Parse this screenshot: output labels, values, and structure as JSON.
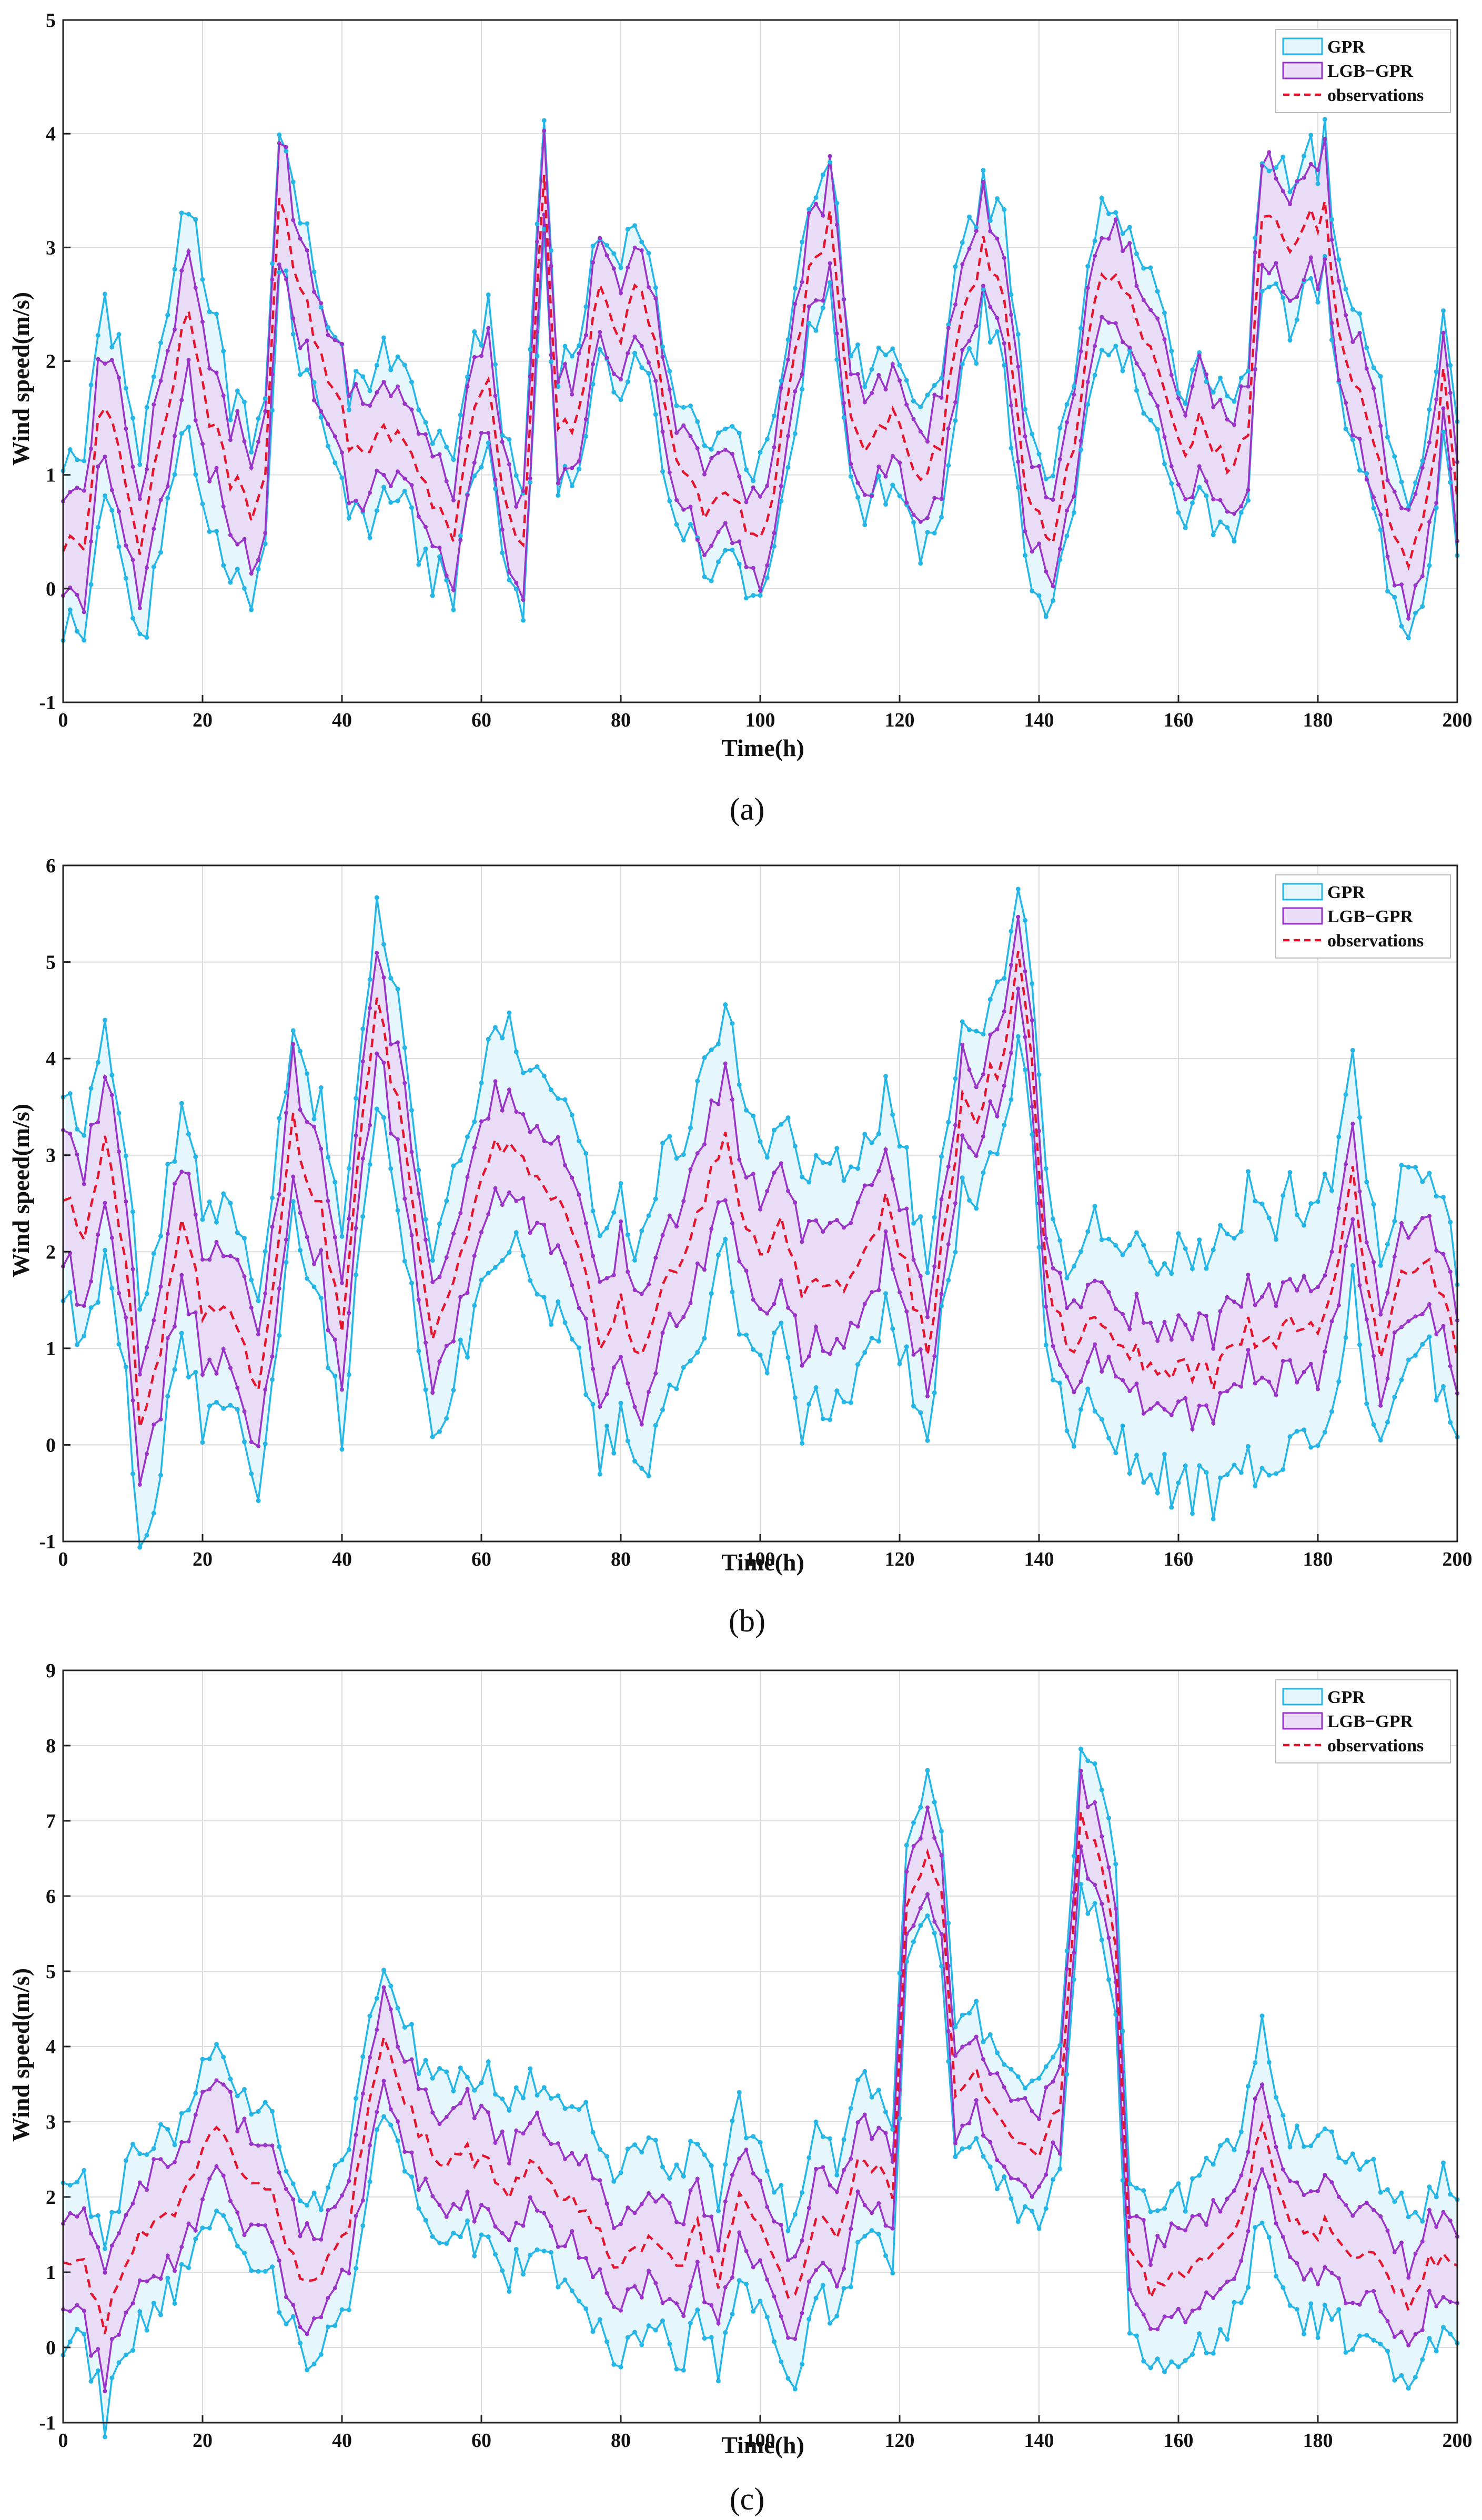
{
  "colors": {
    "gpr_line": "#25b6e6",
    "gpr_fill": "#e5f7fc",
    "lgb_line": "#9a34c9",
    "lgb_fill": "#e9dcf7",
    "obs": "#e5142d",
    "grid": "#dcdcdc",
    "axis": "#222222"
  },
  "chart_data": [
    {
      "type": "line",
      "caption": "(a)",
      "xlabel": "Time(h)",
      "ylabel": "Wind speed(m/s)",
      "xlim": [
        0,
        200
      ],
      "ylim": [
        -1,
        5
      ],
      "xticks": [
        0,
        20,
        40,
        60,
        80,
        100,
        120,
        140,
        160,
        180,
        200
      ],
      "yticks": [
        -1,
        0,
        1,
        2,
        3,
        4,
        5
      ],
      "legend": [
        "GPR",
        "LGB−GPR",
        "observations"
      ],
      "legend_position": "top-right",
      "grid": true,
      "anchors": [
        [
          0,
          0.4
        ],
        [
          3,
          0.3
        ],
        [
          5,
          1.6
        ],
        [
          8,
          1.3
        ],
        [
          11,
          0.4
        ],
        [
          14,
          1.4
        ],
        [
          18,
          2.4
        ],
        [
          21,
          1.5
        ],
        [
          24,
          1.0
        ],
        [
          27,
          0.6
        ],
        [
          29,
          1.0
        ],
        [
          31,
          3.4
        ],
        [
          34,
          2.7
        ],
        [
          37,
          2.1
        ],
        [
          41,
          1.3
        ],
        [
          44,
          1.2
        ],
        [
          48,
          1.4
        ],
        [
          52,
          0.8
        ],
        [
          56,
          0.4
        ],
        [
          59,
          1.6
        ],
        [
          61,
          1.8
        ],
        [
          64,
          0.6
        ],
        [
          66,
          0.4
        ],
        [
          69,
          3.7
        ],
        [
          71,
          1.3
        ],
        [
          74,
          1.5
        ],
        [
          77,
          2.7
        ],
        [
          80,
          2.2
        ],
        [
          83,
          2.7
        ],
        [
          86,
          1.7
        ],
        [
          89,
          1.0
        ],
        [
          92,
          0.7
        ],
        [
          95,
          0.9
        ],
        [
          98,
          0.5
        ],
        [
          101,
          0.6
        ],
        [
          104,
          1.6
        ],
        [
          107,
          2.7
        ],
        [
          110,
          3.2
        ],
        [
          113,
          1.4
        ],
        [
          116,
          1.2
        ],
        [
          119,
          1.6
        ],
        [
          122,
          0.9
        ],
        [
          126,
          1.3
        ],
        [
          129,
          2.4
        ],
        [
          132,
          3.0
        ],
        [
          135,
          2.5
        ],
        [
          138,
          1.0
        ],
        [
          140,
          0.6
        ],
        [
          142,
          0.3
        ],
        [
          145,
          1.3
        ],
        [
          148,
          2.6
        ],
        [
          151,
          2.8
        ],
        [
          154,
          2.3
        ],
        [
          157,
          2.0
        ],
        [
          160,
          1.2
        ],
        [
          163,
          1.5
        ],
        [
          167,
          1.0
        ],
        [
          170,
          1.4
        ],
        [
          172,
          3.4
        ],
        [
          174,
          3.3
        ],
        [
          176,
          3.0
        ],
        [
          178,
          3.2
        ],
        [
          181,
          3.3
        ],
        [
          184,
          1.9
        ],
        [
          187,
          1.5
        ],
        [
          190,
          0.7
        ],
        [
          193,
          0.3
        ],
        [
          196,
          0.8
        ],
        [
          198,
          1.8
        ],
        [
          200,
          0.9
        ]
      ],
      "gpr_anchors": [
        [
          0,
          0.8
        ],
        [
          10,
          0.85
        ],
        [
          20,
          1.0
        ],
        [
          30,
          0.6
        ],
        [
          40,
          0.55
        ],
        [
          50,
          0.6
        ],
        [
          60,
          0.6
        ],
        [
          70,
          0.5
        ],
        [
          80,
          0.6
        ],
        [
          90,
          0.55
        ],
        [
          100,
          0.55
        ],
        [
          110,
          0.6
        ],
        [
          120,
          0.6
        ],
        [
          130,
          0.6
        ],
        [
          140,
          0.6
        ],
        [
          150,
          0.6
        ],
        [
          160,
          0.6
        ],
        [
          170,
          0.55
        ],
        [
          180,
          0.6
        ],
        [
          190,
          0.6
        ],
        [
          200,
          0.6
        ]
      ],
      "lgb_anchors": [
        [
          0,
          0.5
        ],
        [
          10,
          0.5
        ],
        [
          20,
          0.5
        ],
        [
          30,
          0.5
        ],
        [
          40,
          0.45
        ],
        [
          50,
          0.4
        ],
        [
          60,
          0.4
        ],
        [
          70,
          0.4
        ],
        [
          80,
          0.4
        ],
        [
          90,
          0.35
        ],
        [
          100,
          0.35
        ],
        [
          110,
          0.4
        ],
        [
          120,
          0.4
        ],
        [
          130,
          0.4
        ],
        [
          140,
          0.4
        ],
        [
          150,
          0.4
        ],
        [
          160,
          0.4
        ],
        [
          170,
          0.45
        ],
        [
          180,
          0.45
        ],
        [
          190,
          0.4
        ],
        [
          200,
          0.4
        ]
      ],
      "seed": 11
    },
    {
      "type": "line",
      "caption": "(b)",
      "xlabel": "Time(h)",
      "ylabel": "Wind speed(m/s)",
      "xlim": [
        0,
        200
      ],
      "ylim": [
        -1,
        6
      ],
      "xticks": [
        0,
        20,
        40,
        60,
        80,
        100,
        120,
        140,
        160,
        180,
        200
      ],
      "yticks": [
        -1,
        0,
        1,
        2,
        3,
        4,
        5,
        6
      ],
      "legend": [
        "GPR",
        "LGB−GPR",
        "observations"
      ],
      "legend_position": "top-right",
      "grid": true,
      "anchors": [
        [
          0,
          2.6
        ],
        [
          3,
          2.2
        ],
        [
          6,
          3.1
        ],
        [
          9,
          2.0
        ],
        [
          11,
          0.3
        ],
        [
          14,
          1.0
        ],
        [
          17,
          2.4
        ],
        [
          20,
          1.4
        ],
        [
          24,
          1.4
        ],
        [
          28,
          0.5
        ],
        [
          30,
          1.7
        ],
        [
          33,
          3.3
        ],
        [
          37,
          2.4
        ],
        [
          40,
          1.2
        ],
        [
          42,
          2.8
        ],
        [
          45,
          4.6
        ],
        [
          48,
          3.5
        ],
        [
          53,
          1.0
        ],
        [
          57,
          1.9
        ],
        [
          61,
          3.0
        ],
        [
          64,
          3.2
        ],
        [
          68,
          2.8
        ],
        [
          71,
          2.6
        ],
        [
          74,
          2.0
        ],
        [
          77,
          1.1
        ],
        [
          80,
          1.5
        ],
        [
          83,
          0.9
        ],
        [
          86,
          1.6
        ],
        [
          89,
          2.0
        ],
        [
          92,
          2.6
        ],
        [
          95,
          3.2
        ],
        [
          98,
          2.2
        ],
        [
          100,
          2.0
        ],
        [
          103,
          2.3
        ],
        [
          106,
          1.6
        ],
        [
          110,
          1.6
        ],
        [
          114,
          1.8
        ],
        [
          118,
          2.5
        ],
        [
          121,
          1.8
        ],
        [
          124,
          1.0
        ],
        [
          127,
          2.5
        ],
        [
          129,
          3.6
        ],
        [
          131,
          3.2
        ],
        [
          133,
          3.8
        ],
        [
          135,
          4.0
        ],
        [
          137,
          5.1
        ],
        [
          139,
          4.0
        ],
        [
          141,
          1.8
        ],
        [
          144,
          1.0
        ],
        [
          148,
          1.4
        ],
        [
          151,
          1.1
        ],
        [
          155,
          0.9
        ],
        [
          159,
          0.8
        ],
        [
          162,
          0.8
        ],
        [
          165,
          0.7
        ],
        [
          167,
          0.9
        ],
        [
          170,
          1.2
        ],
        [
          173,
          1.0
        ],
        [
          176,
          1.3
        ],
        [
          180,
          1.1
        ],
        [
          183,
          1.8
        ],
        [
          185,
          2.9
        ],
        [
          187,
          1.6
        ],
        [
          189,
          1.0
        ],
        [
          192,
          1.8
        ],
        [
          195,
          2.0
        ],
        [
          198,
          1.5
        ],
        [
          200,
          1.0
        ]
      ],
      "gpr_anchors": [
        [
          0,
          1.1
        ],
        [
          10,
          1.2
        ],
        [
          20,
          1.1
        ],
        [
          30,
          1.0
        ],
        [
          40,
          1.0
        ],
        [
          50,
          1.0
        ],
        [
          60,
          1.1
        ],
        [
          70,
          1.1
        ],
        [
          80,
          1.2
        ],
        [
          90,
          1.3
        ],
        [
          100,
          1.2
        ],
        [
          110,
          1.2
        ],
        [
          120,
          1.0
        ],
        [
          130,
          0.8
        ],
        [
          140,
          0.8
        ],
        [
          150,
          1.0
        ],
        [
          160,
          1.2
        ],
        [
          170,
          1.3
        ],
        [
          180,
          1.2
        ],
        [
          190,
          1.0
        ],
        [
          200,
          0.9
        ]
      ],
      "lgb_anchors": [
        [
          0,
          0.7
        ],
        [
          10,
          0.7
        ],
        [
          20,
          0.6
        ],
        [
          30,
          0.6
        ],
        [
          40,
          0.6
        ],
        [
          50,
          0.5
        ],
        [
          60,
          0.5
        ],
        [
          70,
          0.5
        ],
        [
          80,
          0.6
        ],
        [
          90,
          0.6
        ],
        [
          100,
          0.6
        ],
        [
          110,
          0.6
        ],
        [
          120,
          0.5
        ],
        [
          130,
          0.4
        ],
        [
          140,
          0.4
        ],
        [
          150,
          0.4
        ],
        [
          160,
          0.4
        ],
        [
          170,
          0.45
        ],
        [
          180,
          0.45
        ],
        [
          190,
          0.45
        ],
        [
          200,
          0.45
        ]
      ],
      "seed": 23
    },
    {
      "type": "line",
      "caption": "(c)",
      "xlabel": "Time(h)",
      "ylabel": "Wind speed(m/s)",
      "xlim": [
        0,
        200
      ],
      "ylim": [
        -1,
        9
      ],
      "xticks": [
        0,
        20,
        40,
        60,
        80,
        100,
        120,
        140,
        160,
        180,
        200
      ],
      "yticks": [
        -1,
        0,
        1,
        2,
        3,
        4,
        5,
        6,
        7,
        8,
        9
      ],
      "legend": [
        "GPR",
        "LGB−GPR",
        "observations"
      ],
      "legend_position": "top-right",
      "grid": true,
      "anchors": [
        [
          0,
          1.2
        ],
        [
          3,
          1.1
        ],
        [
          6,
          0.3
        ],
        [
          9,
          1.2
        ],
        [
          12,
          1.6
        ],
        [
          15,
          1.7
        ],
        [
          18,
          2.2
        ],
        [
          21,
          2.9
        ],
        [
          24,
          2.6
        ],
        [
          27,
          2.2
        ],
        [
          30,
          2.0
        ],
        [
          33,
          1.2
        ],
        [
          35,
          0.9
        ],
        [
          38,
          1.1
        ],
        [
          41,
          1.6
        ],
        [
          44,
          3.3
        ],
        [
          46,
          4.1
        ],
        [
          49,
          3.2
        ],
        [
          52,
          2.8
        ],
        [
          55,
          2.4
        ],
        [
          58,
          2.6
        ],
        [
          61,
          2.4
        ],
        [
          64,
          2.1
        ],
        [
          67,
          2.4
        ],
        [
          70,
          2.1
        ],
        [
          73,
          1.9
        ],
        [
          76,
          1.7
        ],
        [
          79,
          1.1
        ],
        [
          82,
          1.3
        ],
        [
          85,
          1.4
        ],
        [
          88,
          1.0
        ],
        [
          91,
          1.6
        ],
        [
          94,
          0.9
        ],
        [
          97,
          2.0
        ],
        [
          100,
          1.6
        ],
        [
          103,
          1.0
        ],
        [
          105,
          0.6
        ],
        [
          108,
          1.7
        ],
        [
          111,
          1.4
        ],
        [
          114,
          2.6
        ],
        [
          117,
          2.4
        ],
        [
          119,
          2.1
        ],
        [
          121,
          5.8
        ],
        [
          124,
          6.5
        ],
        [
          126,
          6.1
        ],
        [
          128,
          3.2
        ],
        [
          131,
          3.6
        ],
        [
          134,
          3.0
        ],
        [
          137,
          2.6
        ],
        [
          140,
          2.5
        ],
        [
          143,
          3.2
        ],
        [
          146,
          7.1
        ],
        [
          149,
          6.4
        ],
        [
          151,
          5.4
        ],
        [
          153,
          1.2
        ],
        [
          156,
          0.8
        ],
        [
          160,
          0.9
        ],
        [
          163,
          1.2
        ],
        [
          166,
          1.3
        ],
        [
          169,
          1.8
        ],
        [
          172,
          2.9
        ],
        [
          175,
          1.9
        ],
        [
          178,
          1.4
        ],
        [
          181,
          1.6
        ],
        [
          184,
          1.3
        ],
        [
          187,
          1.3
        ],
        [
          190,
          0.9
        ],
        [
          193,
          0.5
        ],
        [
          196,
          1.1
        ],
        [
          199,
          1.2
        ],
        [
          200,
          1.0
        ]
      ],
      "gpr_anchors": [
        [
          0,
          1.1
        ],
        [
          10,
          1.2
        ],
        [
          20,
          1.0
        ],
        [
          30,
          1.0
        ],
        [
          40,
          1.0
        ],
        [
          50,
          1.0
        ],
        [
          60,
          1.1
        ],
        [
          70,
          1.2
        ],
        [
          80,
          1.2
        ],
        [
          90,
          1.2
        ],
        [
          100,
          1.1
        ],
        [
          110,
          1.1
        ],
        [
          120,
          0.9
        ],
        [
          130,
          0.8
        ],
        [
          140,
          0.9
        ],
        [
          150,
          1.0
        ],
        [
          160,
          1.1
        ],
        [
          170,
          1.2
        ],
        [
          180,
          1.2
        ],
        [
          190,
          1.1
        ],
        [
          200,
          1.0
        ]
      ],
      "lgb_anchors": [
        [
          0,
          0.7
        ],
        [
          10,
          0.7
        ],
        [
          20,
          0.65
        ],
        [
          30,
          0.65
        ],
        [
          40,
          0.6
        ],
        [
          50,
          0.6
        ],
        [
          60,
          0.6
        ],
        [
          70,
          0.6
        ],
        [
          80,
          0.6
        ],
        [
          90,
          0.6
        ],
        [
          100,
          0.6
        ],
        [
          110,
          0.6
        ],
        [
          120,
          0.5
        ],
        [
          130,
          0.5
        ],
        [
          140,
          0.5
        ],
        [
          150,
          0.5
        ],
        [
          160,
          0.55
        ],
        [
          170,
          0.55
        ],
        [
          180,
          0.55
        ],
        [
          190,
          0.55
        ],
        [
          200,
          0.55
        ]
      ],
      "seed": 37
    }
  ]
}
